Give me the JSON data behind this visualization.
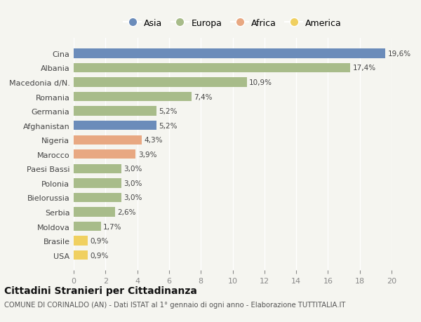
{
  "countries": [
    "Cina",
    "Albania",
    "Macedonia d/N.",
    "Romania",
    "Germania",
    "Afghanistan",
    "Nigeria",
    "Marocco",
    "Paesi Bassi",
    "Polonia",
    "Bielorussia",
    "Serbia",
    "Moldova",
    "Brasile",
    "USA"
  ],
  "values": [
    19.6,
    17.4,
    10.9,
    7.4,
    5.2,
    5.2,
    4.3,
    3.9,
    3.0,
    3.0,
    3.0,
    2.6,
    1.7,
    0.9,
    0.9
  ],
  "labels": [
    "19,6%",
    "17,4%",
    "10,9%",
    "7,4%",
    "5,2%",
    "5,2%",
    "4,3%",
    "3,9%",
    "3,0%",
    "3,0%",
    "3,0%",
    "2,6%",
    "1,7%",
    "0,9%",
    "0,9%"
  ],
  "categories": [
    "Asia",
    "Europa",
    "Europa",
    "Europa",
    "Europa",
    "Asia",
    "Africa",
    "Africa",
    "Europa",
    "Europa",
    "Europa",
    "Europa",
    "Europa",
    "America",
    "America"
  ],
  "colors": {
    "Asia": "#6b8cba",
    "Europa": "#a8bc8a",
    "Africa": "#e8a882",
    "America": "#f0d060"
  },
  "xlim": [
    0,
    20
  ],
  "xticks": [
    0,
    2,
    4,
    6,
    8,
    10,
    12,
    14,
    16,
    18,
    20
  ],
  "background_color": "#f5f5f0",
  "title1": "Cittadini Stranieri per Cittadinanza",
  "title2": "COMUNE DI CORINALDO (AN) - Dati ISTAT al 1° gennaio di ogni anno - Elaborazione TUTTITALIA.IT",
  "legend_order": [
    "Asia",
    "Europa",
    "Africa",
    "America"
  ]
}
